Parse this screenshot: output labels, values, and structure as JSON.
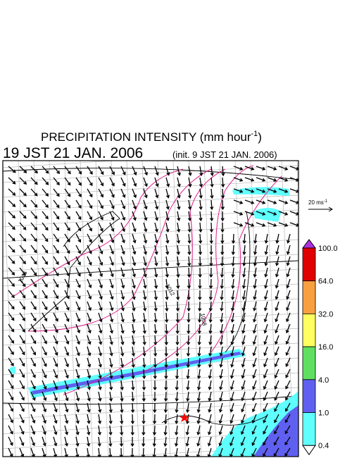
{
  "header": {
    "title": "PRECIPITATION INTENSITY (mm hour",
    "title_sup": "-1",
    "title_end": ")",
    "time": "19 JST 21 JAN. 2006",
    "init": "(init. 9 JST 21 JAN. 2006)"
  },
  "scale_arrow": {
    "label": "20 ms",
    "sup": "-1"
  },
  "colorbar": {
    "levels": [
      {
        "label": "100.0",
        "color": "#e00000"
      },
      {
        "label": "64.0",
        "color": "#f8a040"
      },
      {
        "label": "32.0",
        "color": "#ffff60"
      },
      {
        "label": "16.0",
        "color": "#60e060"
      },
      {
        "label": "4.0",
        "color": "#6060f0"
      },
      {
        "label": "1.0",
        "color": "#60ffff"
      },
      {
        "label": "0.4",
        "color": "#ffffff"
      }
    ],
    "over_color": "#b030e0"
  },
  "contour_labels": [
    "1016",
    "1012",
    "1008"
  ]
}
